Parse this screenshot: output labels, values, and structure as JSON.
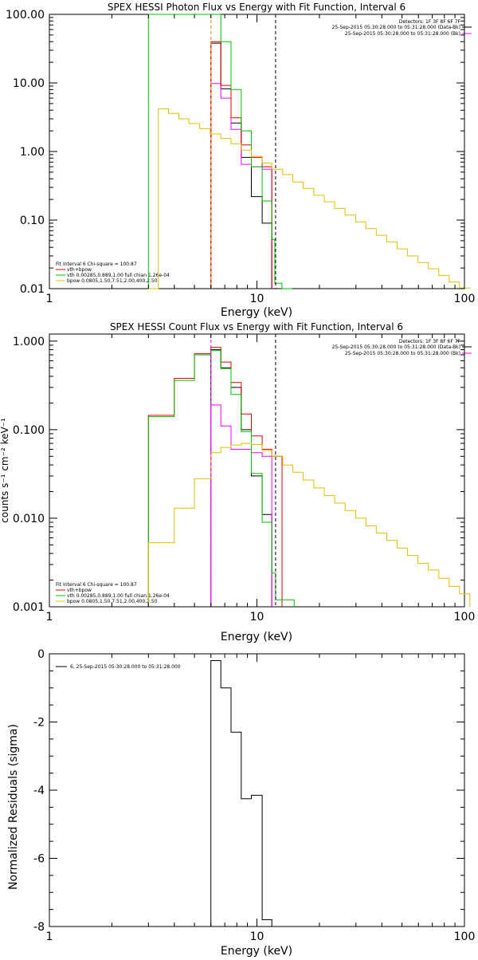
{
  "chart_data": [
    {
      "type": "line",
      "title": "SPEX HESSI Photon Flux vs Energy with Fit Function, Interval 6",
      "xlabel": "Energy (keV)",
      "ylabel": "",
      "xscale": "log",
      "yscale": "log",
      "xlim": [
        1,
        100
      ],
      "ylim": [
        0.01,
        100
      ],
      "x_ticks": [
        "1",
        "10",
        "100"
      ],
      "y_ticks": [
        "0.01",
        "0.10",
        "1.00",
        "10.00",
        "100.00"
      ],
      "detector_info": [
        "Detectors: 1F 3F 8F 6F 7F",
        "25-Sep-2015 05:30:28.000 to 05:31:28.000 (Data-Bk)",
        "25-Sep-2015 05:30:28.000 to 05:31:28.000 (Bk)"
      ],
      "fit_info": [
        "Fit Interval  6    Chi-square = 100.87",
        "vth+bpow",
        "vth 0.00285,0.889,1.00  full chian 1.26e-04",
        "bpow 0.0805,1.50,7.51,2.00,400,2.50"
      ],
      "edges": [
        6.0,
        6.7,
        7.5,
        8.4,
        9.4,
        10.6,
        11.8
      ],
      "series": [
        {
          "name": "Data-Bk",
          "color": "#000000",
          "values": [
            38,
            8.2,
            2.6,
            0.82,
            0.22,
            0.09
          ]
        },
        {
          "name": "Bk",
          "color": "#ff00ff",
          "values": [
            9.8,
            6.0,
            2.1,
            0.65,
            0.6,
            0.55
          ]
        },
        {
          "name": "vth+bpow",
          "color": "#e00000",
          "values": [
            40,
            9.2,
            3.1,
            1.25,
            0.82,
            0.6
          ]
        },
        {
          "name": "vth",
          "color": "#00c000",
          "xs": [
            3.0,
            5.4,
            6.0,
            6.7,
            7.5,
            8.4,
            9.4,
            10.6,
            11.8,
            12.2,
            13.2
          ],
          "values": [
            100,
            100,
            100,
            40,
            8.0,
            2.0,
            0.6,
            0.19,
            0.052,
            0.012,
            0.008
          ]
        },
        {
          "name": "bpow",
          "color": "#e0c000",
          "xs": [
            3.0,
            3.35,
            3.75,
            4.2,
            4.7,
            5.3,
            5.95,
            6.7,
            7.5,
            8.4,
            9.4,
            10.6,
            11.8,
            13.3,
            14.9,
            16.7,
            18.8,
            21.1,
            23.7,
            26.6,
            29.9,
            33.5,
            37.6,
            42.2,
            47.4,
            53.2,
            59.7,
            67.0,
            75.2,
            84.4,
            94.7
          ],
          "values": [
            0.01,
            4.2,
            3.6,
            3.0,
            2.55,
            2.15,
            1.8,
            1.55,
            1.3,
            1.05,
            0.85,
            0.68,
            0.55,
            0.46,
            0.36,
            0.29,
            0.23,
            0.185,
            0.148,
            0.118,
            0.094,
            0.075,
            0.06,
            0.048,
            0.038,
            0.03,
            0.024,
            0.0195,
            0.0155,
            0.0125,
            0.0102
          ]
        }
      ],
      "dashed_lines": [
        {
          "x": 6.0,
          "color": "#ff00ff"
        },
        {
          "x": 6.0,
          "color": "#e0c000"
        },
        {
          "x": 12.3,
          "color": "#000000"
        }
      ]
    },
    {
      "type": "line",
      "title": "SPEX HESSI Count Flux vs Energy with Fit Function, Interval 6",
      "xlabel": "Energy (keV)",
      "ylabel": "counts s⁻¹ cm⁻² keV⁻¹",
      "xscale": "log",
      "yscale": "log",
      "xlim": [
        1,
        100
      ],
      "ylim": [
        0.001,
        1.2
      ],
      "x_ticks": [
        "1",
        "10",
        "100"
      ],
      "y_ticks": [
        "0.001",
        "0.010",
        "0.100",
        "1.000"
      ],
      "detector_info": [
        "Detectors: 1F 3F 8F 6F 7F",
        "25-Sep-2015 05:30:28.000 to 05:31:28.000 (Data-Bk)",
        "25-Sep-2015 05:30:28.000 to 05:31:28.000 (Bk)"
      ],
      "fit_info": [
        "Fit Interval  6    Chi-square = 100.87",
        "vth+bpow",
        "vth 0.00285,0.889,1.00  full chian 1.26e-04",
        "bpow 0.0805,1.50,7.51,2.00,400,2.50"
      ],
      "edges": [
        6.0,
        6.7,
        7.5,
        8.4,
        9.4,
        10.6,
        11.8
      ],
      "series": [
        {
          "name": "Data-Bk",
          "color": "#000000",
          "values": [
            0.8,
            0.5,
            0.3,
            0.1,
            0.03,
            0.011
          ]
        },
        {
          "name": "Bk",
          "color": "#ff00ff",
          "values": [
            0.19,
            0.11,
            0.06,
            0.06,
            0.055,
            0.05
          ]
        },
        {
          "name": "vth+bpow",
          "color": "#e00000",
          "xs": [
            3.0,
            4.0,
            5.0,
            6.0,
            6.7,
            7.5,
            8.4,
            9.4,
            10.6,
            11.8
          ],
          "values": [
            0.145,
            0.38,
            0.72,
            0.85,
            0.58,
            0.34,
            0.15,
            0.085,
            0.06,
            0.05
          ]
        },
        {
          "name": "vth",
          "color": "#00c000",
          "xs": [
            3.0,
            4.0,
            5.0,
            6.0,
            6.7,
            7.5,
            8.4,
            9.4,
            10.6,
            11.8,
            12.3,
            13.5
          ],
          "values": [
            0.14,
            0.36,
            0.7,
            0.78,
            0.49,
            0.25,
            0.095,
            0.032,
            0.009,
            0.0024,
            0.0012,
            0.0012
          ]
        },
        {
          "name": "bpow",
          "color": "#e0c000",
          "xs": [
            3.0,
            4.0,
            5.0,
            6.0,
            6.7,
            7.5,
            8.4,
            9.4,
            10.6,
            11.8,
            13.3,
            14.9,
            16.7,
            18.8,
            21.1,
            23.7,
            26.6,
            29.9,
            33.5,
            37.6,
            42.2,
            47.4,
            53.2,
            59.7,
            67.0,
            75.2,
            84.4,
            94.7
          ],
          "values": [
            0.0053,
            0.013,
            0.028,
            0.055,
            0.063,
            0.067,
            0.07,
            0.068,
            0.058,
            0.05,
            0.04,
            0.033,
            0.027,
            0.022,
            0.018,
            0.0148,
            0.0122,
            0.01,
            0.0082,
            0.0068,
            0.0056,
            0.0046,
            0.0038,
            0.0031,
            0.0026,
            0.0021,
            0.0017,
            0.0014
          ]
        }
      ],
      "dashed_lines": [
        {
          "x": 6.0,
          "color": "#ff00ff"
        },
        {
          "x": 12.3,
          "color": "#000000"
        }
      ]
    },
    {
      "type": "line",
      "title": "",
      "xlabel": "Energy (keV)",
      "ylabel": "Normalized Residuals (sigma)",
      "xscale": "log",
      "yscale": "linear",
      "xlim": [
        1,
        100
      ],
      "ylim": [
        -8,
        0
      ],
      "x_ticks": [
        "1",
        "10",
        "100"
      ],
      "y_ticks": [
        "-8",
        "-6",
        "-4",
        "-2",
        "0"
      ],
      "legend": "6, 25-Sep-2015 05:30:28.000 to 05:31:28.000",
      "edges": [
        6.0,
        6.7,
        7.5,
        8.4,
        9.4,
        10.6,
        11.8
      ],
      "series": [
        {
          "name": "6",
          "color": "#000000",
          "values": [
            -0.2,
            -1.0,
            -2.3,
            -4.25,
            -4.15,
            -7.8
          ]
        }
      ]
    }
  ]
}
